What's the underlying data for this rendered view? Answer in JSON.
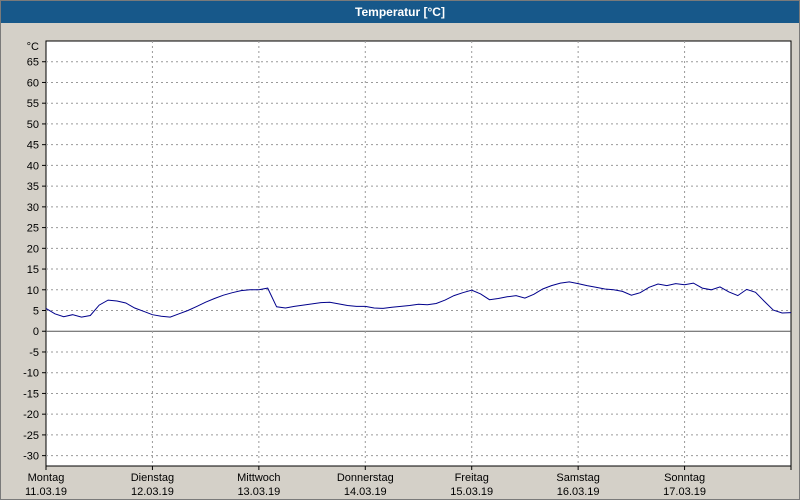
{
  "window": {
    "title": "Temperatur [°C]"
  },
  "colors": {
    "titlebar": "#17588a",
    "titlebar_text": "#ffffff",
    "background": "#d4d0c8",
    "plot_background": "#ffffff",
    "grid": "#9a9a9a",
    "axis": "#000000",
    "zero_line": "#555555",
    "series": "#00008b",
    "label_text": "#000000"
  },
  "chart_data": {
    "type": "line",
    "title": "Temperatur [°C]",
    "ylabel": "°C",
    "xlabel": "",
    "ylim": [
      -30,
      65
    ],
    "ytick_step": 5,
    "grid": true,
    "legend": false,
    "x_axis_days": [
      {
        "day": "Montag",
        "date": "11.03.19"
      },
      {
        "day": "Dienstag",
        "date": "12.03.19"
      },
      {
        "day": "Mittwoch",
        "date": "13.03.19"
      },
      {
        "day": "Donnerstag",
        "date": "14.03.19"
      },
      {
        "day": "Freitag",
        "date": "15.03.19"
      },
      {
        "day": "Samstag",
        "date": "16.03.19"
      },
      {
        "day": "Sonntag",
        "date": "17.03.19"
      }
    ],
    "series": [
      {
        "name": "Temperatur",
        "x_hours": [
          0,
          2,
          4,
          6,
          8,
          10,
          12,
          14,
          16,
          18,
          20,
          22,
          24,
          26,
          28,
          30,
          32,
          34,
          36,
          38,
          40,
          42,
          44,
          46,
          48,
          50,
          52,
          54,
          56,
          58,
          60,
          62,
          64,
          66,
          68,
          70,
          72,
          74,
          76,
          78,
          80,
          82,
          84,
          86,
          88,
          90,
          92,
          94,
          96,
          98,
          100,
          102,
          104,
          106,
          108,
          110,
          112,
          114,
          116,
          118,
          120,
          122,
          124,
          126,
          128,
          130,
          132,
          134,
          136,
          138,
          140,
          142,
          144,
          146,
          148,
          150,
          152,
          154,
          156,
          158,
          160,
          162,
          164,
          166,
          168
        ],
        "values": [
          5.5,
          4.2,
          3.5,
          4.0,
          3.4,
          3.8,
          6.3,
          7.5,
          7.3,
          6.8,
          5.6,
          4.8,
          4.0,
          3.6,
          3.4,
          4.2,
          5.0,
          6.0,
          7.0,
          7.9,
          8.7,
          9.3,
          9.8,
          10.0,
          10.0,
          10.4,
          5.9,
          5.6,
          6.0,
          6.3,
          6.6,
          6.9,
          7.0,
          6.6,
          6.2,
          6.0,
          6.0,
          5.6,
          5.5,
          5.8,
          6.0,
          6.2,
          6.5,
          6.4,
          6.7,
          7.5,
          8.6,
          9.3,
          9.9,
          9.0,
          7.6,
          7.9,
          8.3,
          8.6,
          8.0,
          8.9,
          10.2,
          11.0,
          11.6,
          11.9,
          11.5,
          11.0,
          10.6,
          10.2,
          10.0,
          9.6,
          8.7,
          9.3,
          10.6,
          11.4,
          11.0,
          11.5,
          11.2,
          11.6,
          10.4,
          10.0,
          10.7,
          9.5,
          8.6,
          10.1,
          9.4,
          7.2,
          5.1,
          4.4,
          4.5
        ]
      }
    ]
  }
}
